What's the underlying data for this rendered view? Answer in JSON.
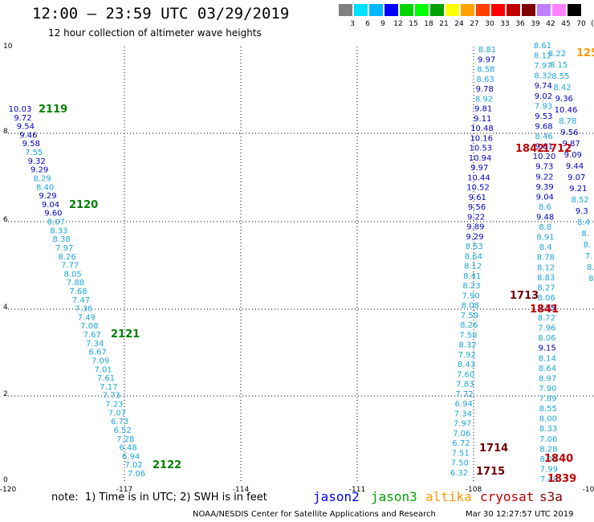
{
  "title": "12:00 – 23:59 UTC 03/29/2019",
  "subtitle": "12 hour collection of altimeter wave heights",
  "color_scale": {
    "labels": [
      "3",
      "6",
      "9",
      "12",
      "15",
      "18",
      "21",
      "24",
      "27",
      "30",
      "33",
      "36",
      "39",
      "42",
      "45",
      "70",
      "(ft)"
    ],
    "colors": [
      "#808080",
      "#00e0ff",
      "#00b8ff",
      "#0000ff",
      "#00d400",
      "#00ff00",
      "#00a000",
      "#ffff00",
      "#ffa000",
      "#ff4000",
      "#ff0000",
      "#c00000",
      "#800000",
      "#c080ff",
      "#ff80ff",
      "#000000"
    ]
  },
  "axes": {
    "x_ticks": [
      "-120",
      "-117",
      "-114",
      "-111",
      "-108",
      "-10"
    ],
    "y_ticks": [
      "0",
      "2",
      "4",
      "6",
      "8",
      "10"
    ]
  },
  "colors": {
    "light": "#1ca6dc",
    "dark": "#0000c0",
    "green": "#008000",
    "red": "#c00000",
    "darkred": "#700000",
    "orange": "#ff9900"
  },
  "track_labels": [
    {
      "text": "2119",
      "c": "green"
    },
    {
      "text": "2120",
      "c": "green"
    },
    {
      "text": "2121",
      "c": "green"
    },
    {
      "text": "2122",
      "c": "green"
    },
    {
      "text": "1712",
      "c": "red"
    },
    {
      "text": "1842",
      "c": "red"
    },
    {
      "text": "1713",
      "c": "darkred"
    },
    {
      "text": "1841",
      "c": "red"
    },
    {
      "text": "1714",
      "c": "darkred"
    },
    {
      "text": "1715",
      "c": "darkred"
    },
    {
      "text": "1840",
      "c": "red"
    },
    {
      "text": "1839",
      "c": "red"
    },
    {
      "text": "125",
      "c": "orange"
    }
  ],
  "track_west": [
    {
      "t": "10.03",
      "c": "dark"
    },
    {
      "t": "9.72",
      "c": "dark"
    },
    {
      "t": "9.54",
      "c": "dark"
    },
    {
      "t": "9.46",
      "c": "dark"
    },
    {
      "t": "9.58",
      "c": "dark"
    },
    {
      "t": "7.55",
      "c": "light"
    },
    {
      "t": "9.32",
      "c": "dark"
    },
    {
      "t": "9.29",
      "c": "dark"
    },
    {
      "t": "8.29",
      "c": "light"
    },
    {
      "t": "8.40",
      "c": "light"
    },
    {
      "t": "9.29",
      "c": "dark"
    },
    {
      "t": "9.04",
      "c": "dark"
    },
    {
      "t": "9.60",
      "c": "dark"
    },
    {
      "t": "8.07",
      "c": "light"
    },
    {
      "t": "8.33",
      "c": "light"
    },
    {
      "t": "8.38",
      "c": "light"
    },
    {
      "t": "7.97",
      "c": "light"
    },
    {
      "t": "8.26",
      "c": "light"
    },
    {
      "t": "7.77",
      "c": "light"
    },
    {
      "t": "8.05",
      "c": "light"
    },
    {
      "t": "7.88",
      "c": "light"
    },
    {
      "t": "7.68",
      "c": "light"
    },
    {
      "t": "7.47",
      "c": "light"
    },
    {
      "t": "7.36",
      "c": "light"
    },
    {
      "t": "7.49",
      "c": "light"
    },
    {
      "t": "7.08",
      "c": "light"
    },
    {
      "t": "7.67",
      "c": "light"
    },
    {
      "t": "7.34",
      "c": "light"
    },
    {
      "t": "6.67",
      "c": "light"
    },
    {
      "t": "7.09",
      "c": "light"
    },
    {
      "t": "7.01",
      "c": "light"
    },
    {
      "t": "7.61",
      "c": "light"
    },
    {
      "t": "7.17",
      "c": "light"
    },
    {
      "t": "7.73",
      "c": "light"
    },
    {
      "t": "7.23",
      "c": "light"
    },
    {
      "t": "7.07",
      "c": "light"
    },
    {
      "t": "6.73",
      "c": "light"
    },
    {
      "t": "6.52",
      "c": "light"
    },
    {
      "t": "7.28",
      "c": "light"
    },
    {
      "t": "6.48",
      "c": "light"
    },
    {
      "t": "6.94",
      "c": "light"
    },
    {
      "t": "7.02",
      "c": "light"
    },
    {
      "t": "7.06",
      "c": "light"
    }
  ],
  "track_a": [
    {
      "t": "8.81",
      "c": "light"
    },
    {
      "t": "9.97",
      "c": "dark"
    },
    {
      "t": "8.58",
      "c": "light"
    },
    {
      "t": "8.63",
      "c": "light"
    },
    {
      "t": "9.78",
      "c": "dark"
    },
    {
      "t": "8.92",
      "c": "light"
    },
    {
      "t": "9.81",
      "c": "dark"
    },
    {
      "t": "9.11",
      "c": "dark"
    },
    {
      "t": "10.48",
      "c": "dark"
    },
    {
      "t": "10.16",
      "c": "dark"
    },
    {
      "t": "10.53",
      "c": "dark"
    },
    {
      "t": "10.94",
      "c": "dark"
    },
    {
      "t": "9.97",
      "c": "dark"
    },
    {
      "t": "10.44",
      "c": "dark"
    },
    {
      "t": "10.52",
      "c": "dark"
    },
    {
      "t": "9.61",
      "c": "dark"
    },
    {
      "t": "9.56",
      "c": "dark"
    },
    {
      "t": "9.22",
      "c": "dark"
    },
    {
      "t": "9.89",
      "c": "dark"
    },
    {
      "t": "9.29",
      "c": "dark"
    },
    {
      "t": "8.53",
      "c": "light"
    },
    {
      "t": "8.64",
      "c": "light"
    },
    {
      "t": "8.12",
      "c": "light"
    },
    {
      "t": "8.41",
      "c": "light"
    },
    {
      "t": "8.23",
      "c": "light"
    },
    {
      "t": "7.90",
      "c": "light"
    },
    {
      "t": "8.08",
      "c": "light"
    },
    {
      "t": "7.59",
      "c": "light"
    },
    {
      "t": "8.26",
      "c": "light"
    },
    {
      "t": "7.58",
      "c": "light"
    },
    {
      "t": "8.32",
      "c": "light"
    },
    {
      "t": "7.92",
      "c": "light"
    },
    {
      "t": "8.43",
      "c": "light"
    },
    {
      "t": "7.60",
      "c": "light"
    },
    {
      "t": "7.83",
      "c": "light"
    },
    {
      "t": "7.72",
      "c": "light"
    },
    {
      "t": "6.94",
      "c": "light"
    },
    {
      "t": "7.34",
      "c": "light"
    },
    {
      "t": "7.97",
      "c": "light"
    },
    {
      "t": "7.06",
      "c": "light"
    },
    {
      "t": "6.72",
      "c": "light"
    },
    {
      "t": "7.51",
      "c": "light"
    },
    {
      "t": "7.50",
      "c": "light"
    },
    {
      "t": "6.32",
      "c": "light"
    }
  ],
  "track_b": [
    {
      "t": "8.61",
      "c": "light"
    },
    {
      "t": "8.12",
      "c": "light"
    },
    {
      "t": "7.97",
      "c": "light"
    },
    {
      "t": "8.32",
      "c": "light"
    },
    {
      "t": "9.74",
      "c": "dark"
    },
    {
      "t": "9.02",
      "c": "dark"
    },
    {
      "t": "7.93",
      "c": "light"
    },
    {
      "t": "9.53",
      "c": "dark"
    },
    {
      "t": "9.68",
      "c": "dark"
    },
    {
      "t": "8.46",
      "c": "light"
    },
    {
      "t": "9.81",
      "c": "dark"
    },
    {
      "t": "10.20",
      "c": "dark"
    },
    {
      "t": "9.73",
      "c": "dark"
    },
    {
      "t": "9.22",
      "c": "dark"
    },
    {
      "t": "9.39",
      "c": "dark"
    },
    {
      "t": "9.04",
      "c": "dark"
    },
    {
      "t": "8.6",
      "c": "light"
    },
    {
      "t": "9.48",
      "c": "dark"
    },
    {
      "t": "8.8",
      "c": "light"
    },
    {
      "t": "8.91",
      "c": "light"
    },
    {
      "t": "8.4",
      "c": "light"
    },
    {
      "t": "8.78",
      "c": "light"
    },
    {
      "t": "8.12",
      "c": "light"
    },
    {
      "t": "8.83",
      "c": "light"
    },
    {
      "t": "8.27",
      "c": "light"
    },
    {
      "t": "8.06",
      "c": "light"
    },
    {
      "t": "9.35",
      "c": "dark"
    },
    {
      "t": "8.72",
      "c": "light"
    },
    {
      "t": "7.96",
      "c": "light"
    },
    {
      "t": "8.06",
      "c": "light"
    },
    {
      "t": "9.15",
      "c": "dark"
    },
    {
      "t": "8.14",
      "c": "light"
    },
    {
      "t": "8.64",
      "c": "light"
    },
    {
      "t": "8.97",
      "c": "light"
    },
    {
      "t": "7.90",
      "c": "light"
    },
    {
      "t": "7.89",
      "c": "light"
    },
    {
      "t": "8.55",
      "c": "light"
    },
    {
      "t": "8.00",
      "c": "light"
    },
    {
      "t": "8.33",
      "c": "light"
    },
    {
      "t": "7.06",
      "c": "light"
    },
    {
      "t": "8.28",
      "c": "light"
    },
    {
      "t": "8.01",
      "c": "light"
    },
    {
      "t": "7.99",
      "c": "light"
    },
    {
      "t": "7.48",
      "c": "light"
    }
  ],
  "track_c": [
    {
      "t": "8.22",
      "c": "light"
    },
    {
      "t": "8.15",
      "c": "light"
    },
    {
      "t": "8.55",
      "c": "light"
    },
    {
      "t": "8.42",
      "c": "light"
    },
    {
      "t": "9.36",
      "c": "dark"
    },
    {
      "t": "10.46",
      "c": "dark"
    },
    {
      "t": "8.78",
      "c": "light"
    },
    {
      "t": "9.56",
      "c": "dark"
    },
    {
      "t": "9.87",
      "c": "dark"
    },
    {
      "t": "9.09",
      "c": "dark"
    },
    {
      "t": "9.44",
      "c": "dark"
    },
    {
      "t": "9.07",
      "c": "dark"
    },
    {
      "t": "9.21",
      "c": "dark"
    },
    {
      "t": "8.52",
      "c": "light"
    },
    {
      "t": "9.3",
      "c": "dark"
    },
    {
      "t": "8.4",
      "c": "light"
    },
    {
      "t": "8.",
      "c": "light"
    },
    {
      "t": "8.",
      "c": "light"
    },
    {
      "t": "7.",
      "c": "light"
    },
    {
      "t": "8.",
      "c": "light"
    },
    {
      "t": "8.",
      "c": "light"
    }
  ],
  "note": "note:  1) Time is in UTC; 2) SWH is in feet",
  "legend": [
    {
      "name": "jason2",
      "color": "#0000ff"
    },
    {
      "name": "jason3",
      "color": "#00a000"
    },
    {
      "name": "altika",
      "color": "#ff9900"
    },
    {
      "name": "cryosat",
      "color": "#c00000"
    },
    {
      "name": "s3a",
      "color": "#800000"
    }
  ],
  "credit": "NOAA/NESDIS Center for Satellite Applications and Research",
  "stamp": "Mar 30 12:27:57 UTC 2019"
}
